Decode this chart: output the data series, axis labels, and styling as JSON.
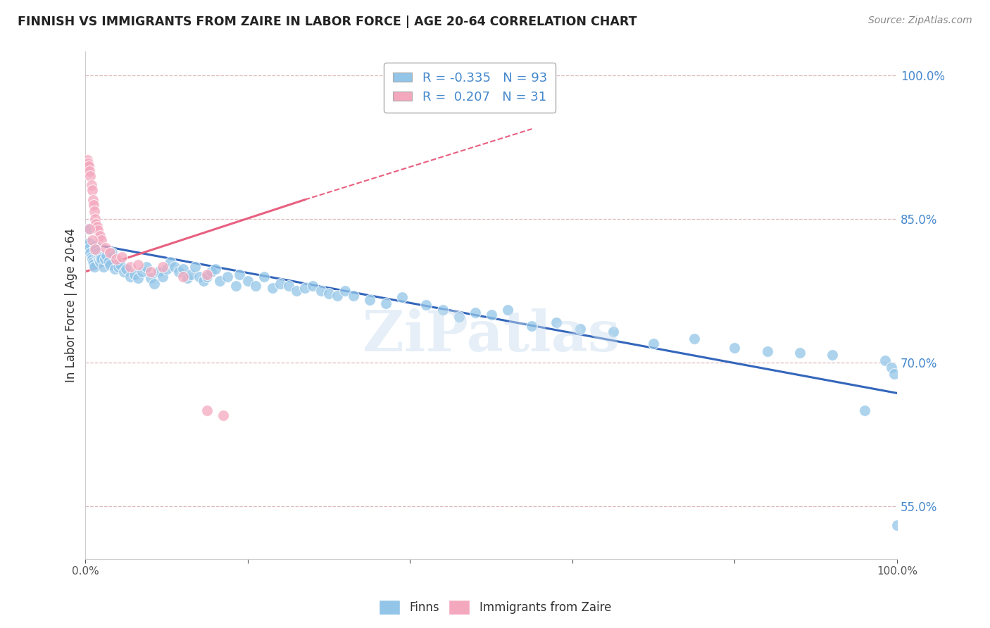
{
  "title": "FINNISH VS IMMIGRANTS FROM ZAIRE IN LABOR FORCE | AGE 20-64 CORRELATION CHART",
  "source": "Source: ZipAtlas.com",
  "ylabel": "In Labor Force | Age 20-64",
  "xlim": [
    0.0,
    1.0
  ],
  "ylim": [
    0.495,
    1.025
  ],
  "yticks": [
    0.55,
    0.7,
    0.85,
    1.0
  ],
  "ytick_labels": [
    "55.0%",
    "70.0%",
    "85.0%",
    "100.0%"
  ],
  "xticks": [
    0.0,
    0.2,
    0.4,
    0.6,
    0.8,
    1.0
  ],
  "xtick_labels": [
    "0.0%",
    "",
    "",
    "",
    "",
    "100.0%"
  ],
  "finns_R": -0.335,
  "finns_N": 93,
  "zaire_R": 0.207,
  "zaire_N": 31,
  "finns_color": "#92C5E8",
  "zaire_color": "#F4A8BE",
  "finns_line_color": "#3366BB",
  "zaire_line_color": "#E86080",
  "background_color": "#FFFFFF",
  "grid_color": "#DDBBBB",
  "watermark": "ZiPatlas",
  "finns_line_x0": 0.0,
  "finns_line_y0": 0.825,
  "finns_line_x1": 1.0,
  "finns_line_y1": 0.668,
  "zaire_line_solid_x0": 0.0,
  "zaire_line_solid_y0": 0.795,
  "zaire_line_solid_x1": 0.27,
  "zaire_line_solid_y1": 0.87,
  "zaire_line_dash_x0": 0.27,
  "zaire_line_dash_y0": 0.87,
  "zaire_line_dash_x1": 0.55,
  "zaire_line_dash_y1": 0.944,
  "finns_x": [
    0.003,
    0.004,
    0.005,
    0.006,
    0.007,
    0.008,
    0.009,
    0.01,
    0.011,
    0.012,
    0.013,
    0.014,
    0.015,
    0.016,
    0.017,
    0.018,
    0.019,
    0.02,
    0.022,
    0.024,
    0.026,
    0.028,
    0.03,
    0.033,
    0.036,
    0.04,
    0.043,
    0.047,
    0.05,
    0.055,
    0.06,
    0.065,
    0.07,
    0.075,
    0.08,
    0.085,
    0.09,
    0.095,
    0.1,
    0.105,
    0.11,
    0.115,
    0.12,
    0.125,
    0.13,
    0.135,
    0.14,
    0.145,
    0.15,
    0.155,
    0.16,
    0.165,
    0.175,
    0.185,
    0.19,
    0.2,
    0.21,
    0.22,
    0.23,
    0.24,
    0.25,
    0.26,
    0.27,
    0.28,
    0.29,
    0.3,
    0.31,
    0.32,
    0.33,
    0.35,
    0.37,
    0.39,
    0.42,
    0.44,
    0.46,
    0.48,
    0.5,
    0.52,
    0.55,
    0.58,
    0.61,
    0.65,
    0.7,
    0.75,
    0.8,
    0.84,
    0.88,
    0.92,
    0.96,
    0.985,
    0.993,
    0.997,
    1.0
  ],
  "finns_y": [
    0.84,
    0.825,
    0.82,
    0.815,
    0.81,
    0.808,
    0.805,
    0.803,
    0.8,
    0.822,
    0.818,
    0.812,
    0.815,
    0.808,
    0.812,
    0.805,
    0.81,
    0.808,
    0.8,
    0.808,
    0.812,
    0.805,
    0.802,
    0.815,
    0.798,
    0.8,
    0.802,
    0.795,
    0.798,
    0.79,
    0.792,
    0.788,
    0.795,
    0.8,
    0.788,
    0.782,
    0.795,
    0.79,
    0.798,
    0.805,
    0.8,
    0.795,
    0.798,
    0.788,
    0.792,
    0.8,
    0.79,
    0.785,
    0.79,
    0.795,
    0.798,
    0.785,
    0.79,
    0.78,
    0.792,
    0.785,
    0.78,
    0.79,
    0.778,
    0.782,
    0.78,
    0.775,
    0.778,
    0.78,
    0.775,
    0.772,
    0.77,
    0.775,
    0.77,
    0.765,
    0.762,
    0.768,
    0.76,
    0.755,
    0.748,
    0.752,
    0.75,
    0.755,
    0.738,
    0.742,
    0.735,
    0.732,
    0.72,
    0.725,
    0.715,
    0.712,
    0.71,
    0.708,
    0.65,
    0.702,
    0.695,
    0.688,
    0.53
  ],
  "zaire_x": [
    0.002,
    0.003,
    0.004,
    0.005,
    0.006,
    0.007,
    0.008,
    0.009,
    0.01,
    0.011,
    0.012,
    0.013,
    0.014,
    0.015,
    0.018,
    0.02,
    0.025,
    0.03,
    0.038,
    0.045,
    0.055,
    0.065,
    0.08,
    0.095,
    0.12,
    0.15,
    0.005,
    0.008,
    0.012,
    0.15,
    0.17
  ],
  "zaire_y": [
    0.912,
    0.908,
    0.905,
    0.9,
    0.895,
    0.885,
    0.88,
    0.87,
    0.865,
    0.858,
    0.85,
    0.845,
    0.842,
    0.838,
    0.832,
    0.828,
    0.82,
    0.815,
    0.808,
    0.81,
    0.8,
    0.802,
    0.795,
    0.8,
    0.79,
    0.792,
    0.84,
    0.828,
    0.818,
    0.65,
    0.645
  ]
}
